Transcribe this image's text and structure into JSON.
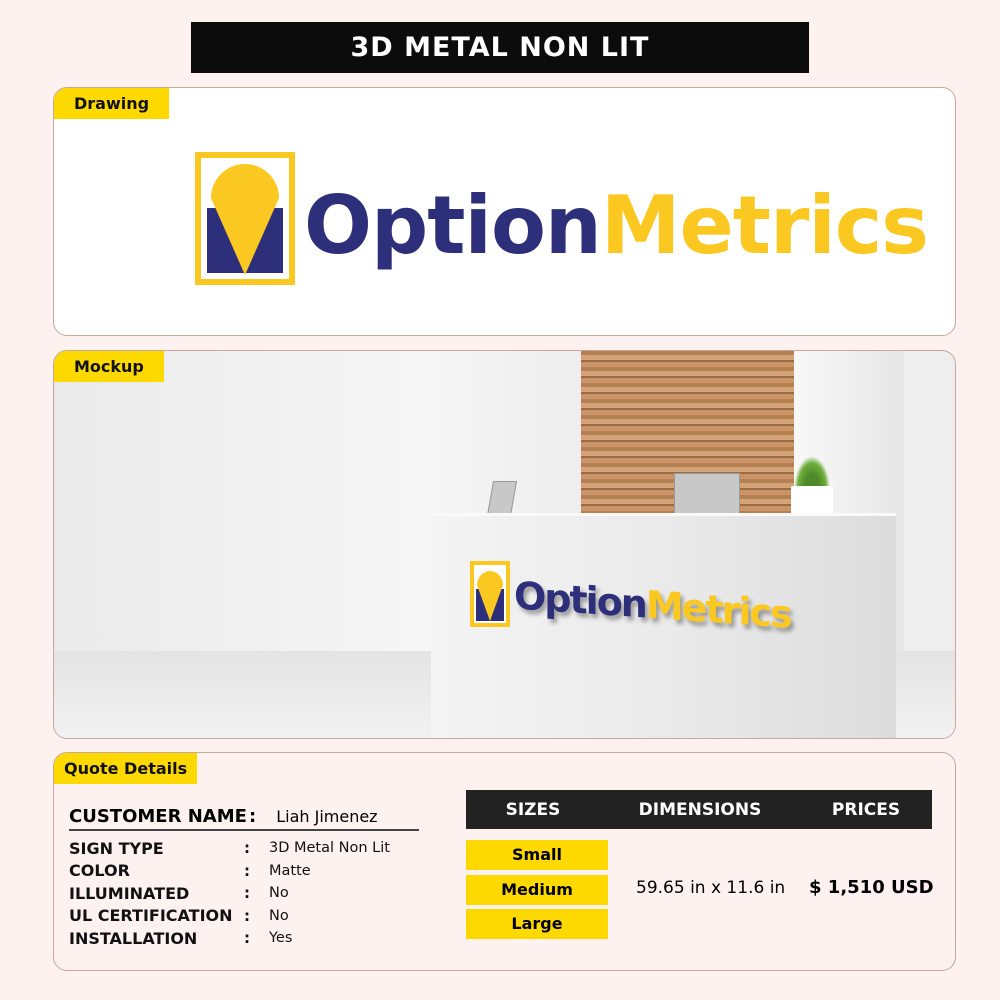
{
  "title": "3D METAL NON LIT",
  "drawing": {
    "label": "Drawing",
    "logo_part1": "Option",
    "logo_part2": "Metrics"
  },
  "mockup": {
    "label": "Mockup",
    "logo_part1": "Option",
    "logo_part2": "Metrics"
  },
  "quote": {
    "label": "Quote Details",
    "customer_label": "CUSTOMER NAME",
    "customer_value": "Liah Jimenez",
    "fields": [
      {
        "key": "SIGN TYPE",
        "value": "3D Metal Non Lit"
      },
      {
        "key": "COLOR",
        "value": "Matte"
      },
      {
        "key": "ILLUMINATED",
        "value": "No"
      },
      {
        "key": "UL CERTIFICATION",
        "value": "No"
      },
      {
        "key": "INSTALLATION",
        "value": "Yes"
      }
    ],
    "separator": ":",
    "table": {
      "headers": [
        "SIZES",
        "DIMENSIONS",
        "PRICES"
      ],
      "sizes": [
        "Small",
        "Medium",
        "Large"
      ],
      "dimensions": "59.65 in x 11.6 in",
      "price": "$ 1,510 USD"
    }
  },
  "colors": {
    "brand_navy": "#2d2f7a",
    "brand_yellow": "#fbc821",
    "tag_yellow": "#fdd900"
  }
}
